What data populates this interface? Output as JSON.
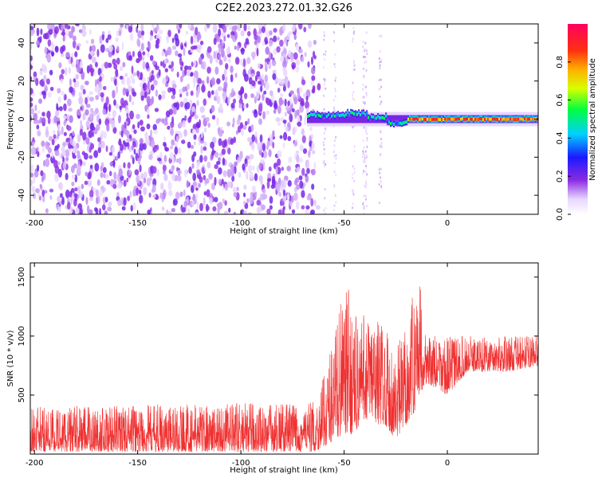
{
  "chart_data": [
    {
      "type": "heatmap",
      "title": "C2E2.2023.272.01.32.G26",
      "xlabel": "Height of straight line (km)",
      "ylabel": "Frequency (Hz)",
      "xlim": [
        -202,
        44
      ],
      "ylim": [
        -50,
        50
      ],
      "xticks": [
        "-200",
        "-150",
        "-100",
        "-50",
        "0"
      ],
      "yticks": [
        "-40",
        "-20",
        "0",
        "20",
        "40"
      ],
      "colorbar": {
        "label": "Normalized spectral amplitude",
        "range": [
          0,
          1
        ],
        "ticks": [
          "0.0",
          "0.2",
          "0.4",
          "0.6",
          "0.8"
        ]
      },
      "regions": [
        {
          "name": "noise",
          "x_range": [
            -202,
            -64
          ],
          "freq_range": [
            -50,
            50
          ],
          "amplitude_range": [
            0.0,
            0.2
          ]
        },
        {
          "name": "carrier-onset",
          "x_range": [
            -68,
            -20
          ],
          "freq_center_hz": [
            2,
            2,
            3,
            1,
            -2
          ],
          "amplitude_range": [
            0.2,
            0.6
          ]
        },
        {
          "name": "carrier",
          "x_range": [
            -20,
            44
          ],
          "freq_center_hz": 0,
          "amplitude_range": [
            0.6,
            1.0
          ]
        }
      ],
      "grid": false
    },
    {
      "type": "line",
      "xlabel": "Height of straight line (km)",
      "ylabel": "SNR (10 * v/v)",
      "xlim": [
        -202,
        44
      ],
      "ylim": [
        0,
        1620
      ],
      "xticks": [
        "-200",
        "-150",
        "-100",
        "-50",
        "0"
      ],
      "yticks": [
        "500",
        "1000",
        "1500"
      ],
      "series_color": "#f03030",
      "envelope": {
        "x": [
          -202,
          -150,
          -100,
          -64,
          -60,
          -52,
          -48,
          -44,
          -40,
          -35,
          -30,
          -25,
          -20,
          -16,
          -14,
          -10,
          0,
          10,
          20,
          30,
          44
        ],
        "y_low": [
          20,
          20,
          20,
          20,
          60,
          150,
          150,
          200,
          300,
          250,
          250,
          100,
          250,
          350,
          500,
          600,
          500,
          700,
          700,
          700,
          750
        ],
        "y_high": [
          400,
          420,
          430,
          440,
          650,
          1300,
          1400,
          1200,
          1200,
          1200,
          1100,
          900,
          1100,
          1400,
          1600,
          1000,
          1000,
          1000,
          1000,
          1000,
          1000
        ]
      },
      "grid": false
    }
  ]
}
